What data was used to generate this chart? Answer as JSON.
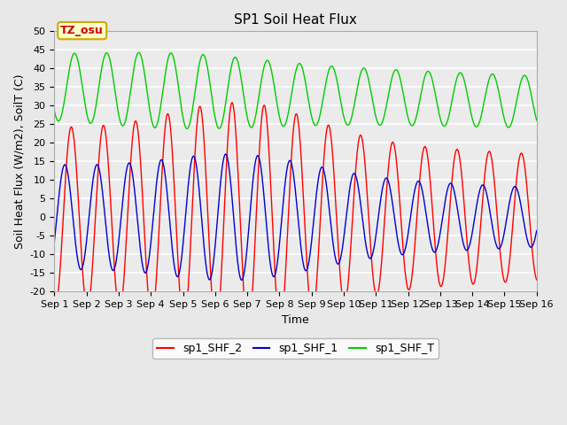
{
  "title": "SP1 Soil Heat Flux",
  "xlabel": "Time",
  "ylabel": "Soil Heat Flux (W/m2), SoilT (C)",
  "ylim": [
    -20,
    50
  ],
  "xlim_days": 15,
  "background_color": "#e8e8e8",
  "plot_bg_color": "#ebebeb",
  "grid_color": "white",
  "tz_label": "TZ_osu",
  "tz_box_color": "#ffffc8",
  "tz_border_color": "#ccaa00",
  "tz_text_color": "#cc0000",
  "line_red": "#ff0000",
  "line_blue": "#0000cc",
  "line_green": "#00cc00",
  "legend_labels": [
    "sp1_SHF_2",
    "sp1_SHF_1",
    "sp1_SHF_T"
  ],
  "x_tick_labels": [
    "Sep 1",
    "Sep 2",
    "Sep 3",
    "Sep 4",
    "Sep 5",
    "Sep 6",
    "Sep 7",
    "Sep 8",
    "Sep 9",
    "Sep 10",
    "Sep 11",
    "Sep 12",
    "Sep 13",
    "Sep 14",
    "Sep 15",
    "Sep 16"
  ],
  "title_fontsize": 11,
  "axis_fontsize": 9,
  "tick_fontsize": 8,
  "legend_fontsize": 9,
  "figwidth": 6.4,
  "figheight": 4.8,
  "dpi": 100
}
